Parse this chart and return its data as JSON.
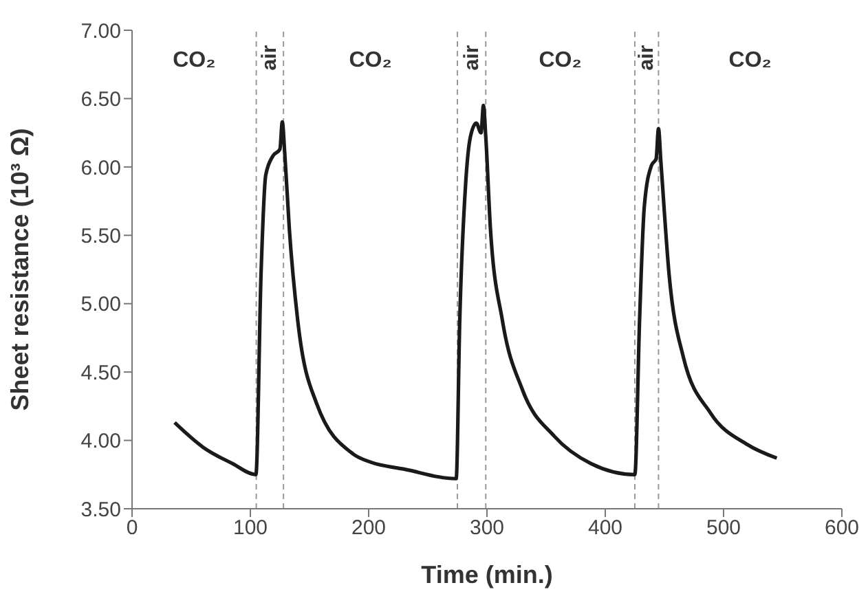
{
  "chart_data": {
    "type": "line",
    "xlabel": "Time (min.)",
    "ylabel": "Sheet resistance (10³ Ω)",
    "xlim": [
      0,
      600
    ],
    "xticks": [
      0,
      100,
      200,
      300,
      400,
      500,
      600
    ],
    "ylim": [
      3.5,
      7
    ],
    "yticks": [
      {
        "value": 3.5,
        "label": "3.50"
      },
      {
        "value": 4,
        "label": "4.00"
      },
      {
        "value": 4.5,
        "label": "4.50"
      },
      {
        "value": 5,
        "label": "5.00"
      },
      {
        "value": 5.5,
        "label": "5.50"
      },
      {
        "value": 6,
        "label": "6.00"
      },
      {
        "value": 6.5,
        "label": "6.50"
      },
      {
        "value": 7,
        "label": "7.00"
      }
    ],
    "grid": false,
    "legend": false,
    "marker": "none",
    "line_style": "solid",
    "series": [
      {
        "color": "#1a1a1a",
        "x": [
          36,
          60,
          85,
          104.7,
          109,
          113,
          119,
          125,
          127,
          129,
          133,
          140,
          156,
          187,
          202,
          230,
          274,
          277,
          282,
          286,
          291,
          295,
          297,
          299,
          303,
          313,
          330,
          357,
          388,
          425,
          429,
          433,
          439,
          443,
          445,
          447,
          454,
          466,
          489,
          520,
          545
        ],
        "values": [
          4.13,
          3.95,
          3.83,
          3.75,
          5.21,
          5.94,
          6.08,
          6.13,
          6.33,
          6.11,
          5.54,
          4.88,
          4.27,
          3.9,
          3.84,
          3.79,
          3.72,
          4.88,
          5.88,
          6.22,
          6.32,
          6.25,
          6.45,
          6.22,
          5.54,
          4.88,
          4.37,
          4.03,
          3.83,
          3.75,
          4.88,
          5.71,
          6.01,
          6.06,
          6.28,
          6.04,
          5.21,
          4.61,
          4.2,
          3.97,
          3.87
        ]
      }
    ],
    "ref_lines": [
      {
        "axis": "x",
        "value": 105,
        "line_style": "dashed",
        "color": "#999999"
      },
      {
        "axis": "x",
        "value": 128,
        "line_style": "dashed",
        "color": "#999999"
      },
      {
        "axis": "x",
        "value": 275,
        "line_style": "dashed",
        "color": "#999999"
      },
      {
        "axis": "x",
        "value": 299,
        "line_style": "dashed",
        "color": "#999999"
      },
      {
        "axis": "x",
        "value": 425,
        "line_style": "dashed",
        "color": "#999999"
      },
      {
        "axis": "x",
        "value": 445,
        "line_style": "dashed",
        "color": "#999999"
      }
    ],
    "annotations": [
      "CO₂",
      "air",
      "CO₂",
      "air",
      "CO₂",
      "air",
      "CO₂"
    ]
  }
}
